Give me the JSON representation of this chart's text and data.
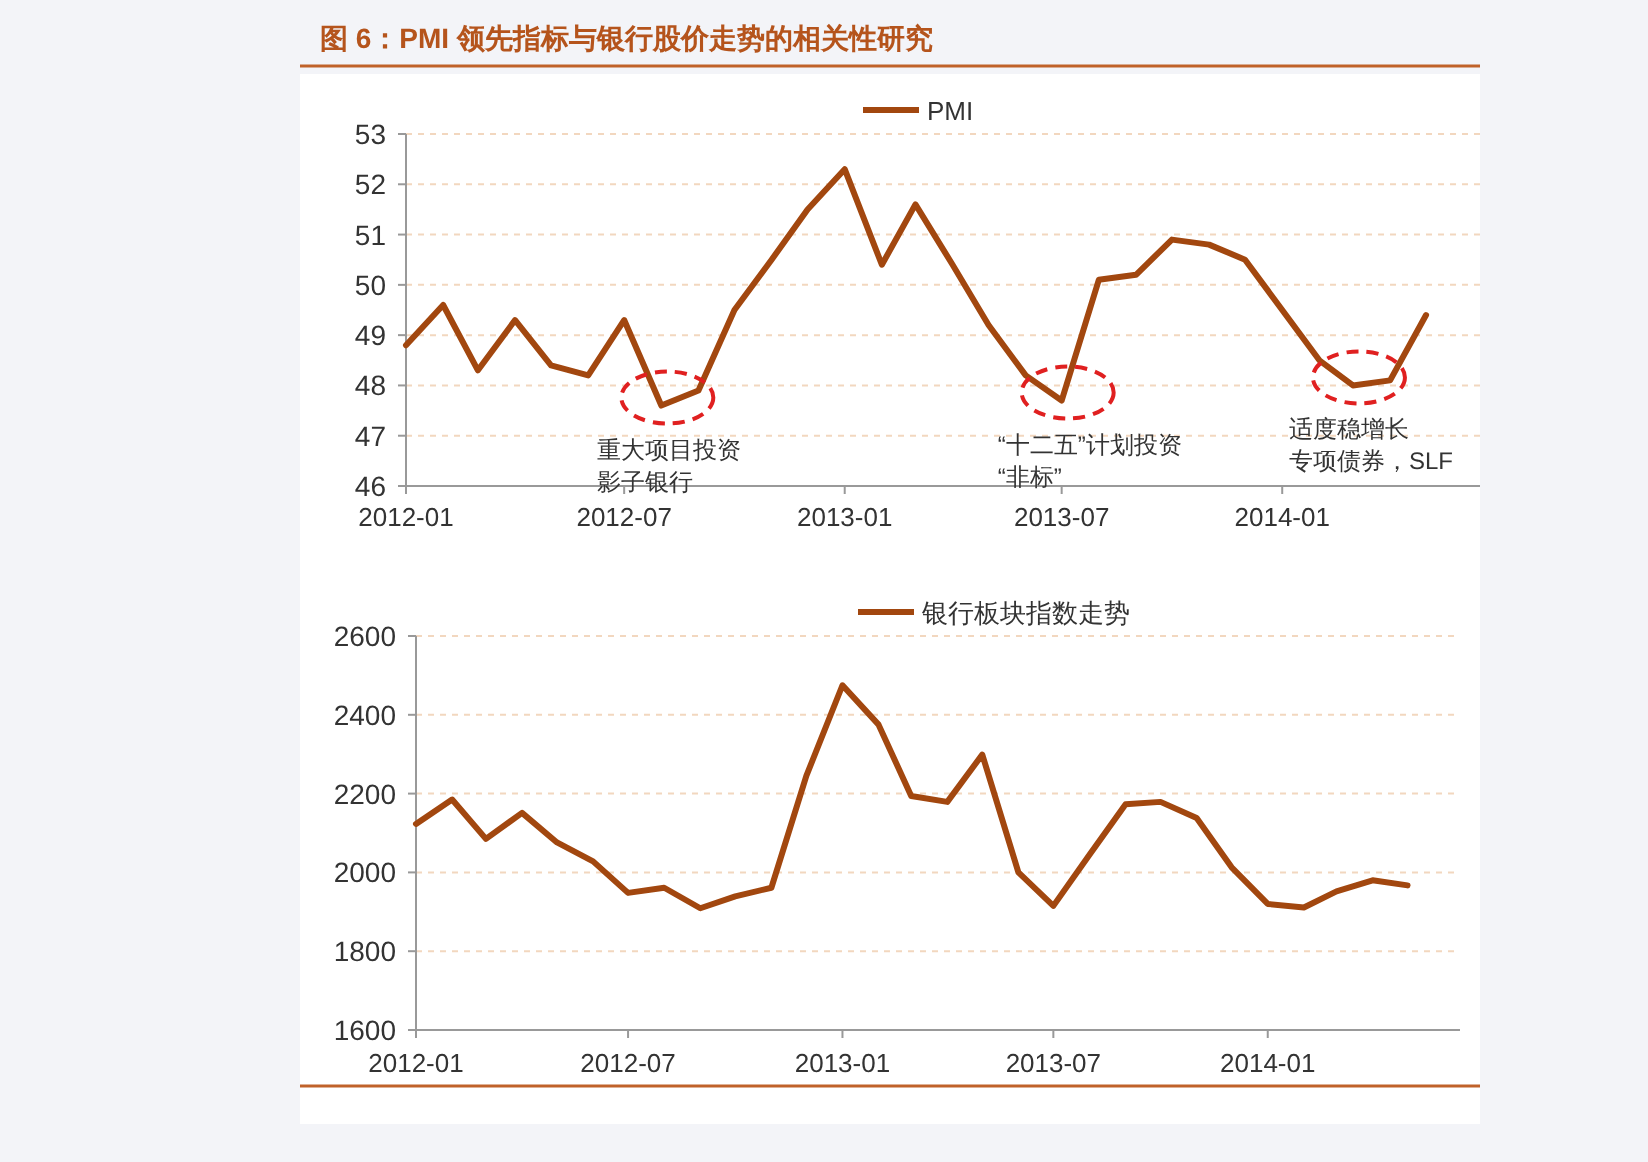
{
  "chart_data": [
    {
      "type": "line",
      "title": "图 6：PMI 领先指标与银行股价走势的相关性研究",
      "x": [
        "2012-01",
        "2012-02",
        "2012-03",
        "2012-04",
        "2012-05",
        "2012-06",
        "2012-07",
        "2012-08",
        "2012-09",
        "2012-10",
        "2012-11",
        "2012-12",
        "2013-01",
        "2013-02",
        "2013-03",
        "2013-04",
        "2013-05",
        "2013-06",
        "2013-07",
        "2013-08",
        "2013-09",
        "2013-10",
        "2013-11",
        "2013-12",
        "2014-01",
        "2014-02",
        "2014-03",
        "2014-04",
        "2014-05"
      ],
      "series": [
        {
          "name": "PMI",
          "color": "#a2470f",
          "values": [
            48.8,
            49.6,
            48.3,
            49.3,
            48.4,
            48.2,
            49.3,
            47.6,
            47.9,
            49.5,
            50.5,
            51.5,
            52.3,
            50.4,
            51.6,
            50.4,
            49.2,
            48.2,
            47.7,
            50.1,
            50.2,
            50.9,
            50.8,
            50.5,
            49.5,
            48.5,
            48.0,
            48.1,
            49.4
          ]
        }
      ],
      "xlim": [
        "2012-01",
        "2014-06-15"
      ],
      "xticks": [
        {
          "value": "2012-01",
          "label": "2012-01"
        },
        {
          "value": "2012-07",
          "label": "2012-07"
        },
        {
          "value": "2013-01",
          "label": "2013-01"
        },
        {
          "value": "2013-07",
          "label": "2013-07"
        },
        {
          "value": "2014-01",
          "label": "2014-01"
        }
      ],
      "ylim": [
        46,
        53
      ],
      "yticks": [
        46,
        47,
        48,
        49,
        50,
        51,
        52,
        53
      ],
      "grid": "y",
      "legend": "top",
      "annotations": [
        {
          "text": "重大项目投资",
          "x": "2012-08",
          "y": 47.6
        },
        "影子银行",
        {
          "text": "“十二五”计划投资",
          "x": "2013-07",
          "y": 47.7
        },
        "“非标”",
        {
          "text": "适度稳增长",
          "x": "2014-03",
          "y": 48.0
        },
        "专项债券，SLF"
      ]
    },
    {
      "type": "line",
      "x": [
        "2012-01",
        "2012-02",
        "2012-03",
        "2012-04",
        "2012-05",
        "2012-06",
        "2012-07",
        "2012-08",
        "2012-09",
        "2012-10",
        "2012-11",
        "2012-12",
        "2013-01",
        "2013-02",
        "2013-03",
        "2013-04",
        "2013-05",
        "2013-06",
        "2013-07",
        "2013-08",
        "2013-09",
        "2013-10",
        "2013-11",
        "2013-12",
        "2014-01",
        "2014-02",
        "2014-03",
        "2014-04",
        "2014-05"
      ],
      "series": [
        {
          "name": "银行板块指数走势",
          "color": "#a2470f",
          "values": [
            2123,
            2185,
            2085,
            2151,
            2076,
            2028,
            1948,
            1961,
            1909,
            1939,
            1961,
            2245,
            2475,
            2375,
            2194,
            2179,
            2299,
            2000,
            1915,
            2045,
            2173,
            2179,
            2138,
            2013,
            1920,
            1911,
            1952,
            1980,
            1967
          ]
        }
      ],
      "xlim": [
        "2012-01",
        "2014-06-15"
      ],
      "xticks": [
        {
          "value": "2012-01",
          "label": "2012-01"
        },
        {
          "value": "2012-07",
          "label": "2012-07"
        },
        {
          "value": "2013-01",
          "label": "2013-01"
        },
        {
          "value": "2013-07",
          "label": "2013-07"
        },
        {
          "value": "2014-01",
          "label": "2014-01"
        }
      ],
      "ylim": [
        1600,
        2600
      ],
      "yticks": [
        1600,
        1800,
        2000,
        2200,
        2400,
        2600
      ],
      "grid": "y",
      "legend": "top"
    }
  ]
}
